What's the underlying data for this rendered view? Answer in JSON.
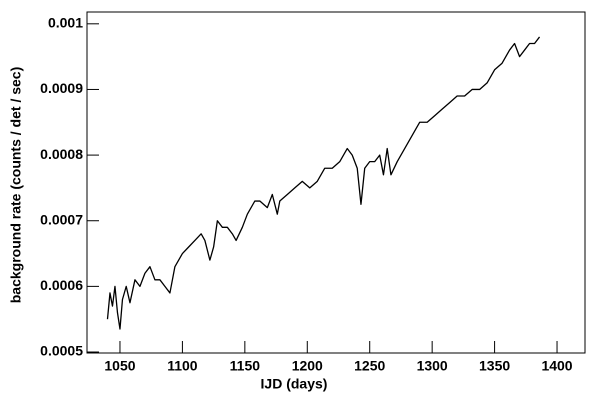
{
  "chart_data": {
    "type": "line",
    "x_label": "IJD (days)",
    "y_label": "background rate (counts / det / sec)",
    "color": "#000000",
    "x": [
      1040,
      1042,
      1044,
      1046,
      1048,
      1050,
      1052,
      1055,
      1058,
      1062,
      1066,
      1070,
      1074,
      1078,
      1082,
      1086,
      1090,
      1094,
      1100,
      1105,
      1110,
      1115,
      1118,
      1122,
      1125,
      1128,
      1132,
      1136,
      1140,
      1143,
      1148,
      1152,
      1158,
      1162,
      1168,
      1172,
      1176,
      1178,
      1184,
      1190,
      1196,
      1202,
      1208,
      1214,
      1220,
      1226,
      1232,
      1236,
      1240,
      1243,
      1246,
      1250,
      1254,
      1258,
      1261,
      1264,
      1267,
      1272,
      1278,
      1284,
      1290,
      1296,
      1302,
      1308,
      1314,
      1320,
      1326,
      1332,
      1338,
      1344,
      1350,
      1356,
      1362,
      1366,
      1370,
      1374,
      1378,
      1382,
      1386
    ],
    "values": [
      0.00055,
      0.00059,
      0.00057,
      0.0006,
      0.00056,
      0.000535,
      0.00058,
      0.0006,
      0.000575,
      0.00061,
      0.0006,
      0.00062,
      0.00063,
      0.00061,
      0.00061,
      0.0006,
      0.00059,
      0.00063,
      0.00065,
      0.00066,
      0.00067,
      0.00068,
      0.00067,
      0.00064,
      0.00066,
      0.0007,
      0.00069,
      0.00069,
      0.00068,
      0.00067,
      0.00069,
      0.00071,
      0.00073,
      0.00073,
      0.00072,
      0.00074,
      0.00071,
      0.00073,
      0.00074,
      0.00075,
      0.00076,
      0.00075,
      0.00076,
      0.00078,
      0.00078,
      0.00079,
      0.00081,
      0.0008,
      0.00078,
      0.000725,
      0.00078,
      0.00079,
      0.00079,
      0.0008,
      0.00077,
      0.00081,
      0.00077,
      0.00079,
      0.00081,
      0.00083,
      0.00085,
      0.00085,
      0.00086,
      0.00087,
      0.00088,
      0.00089,
      0.00089,
      0.0009,
      0.0009,
      0.00091,
      0.00093,
      0.00094,
      0.00096,
      0.00097,
      0.00095,
      0.00096,
      0.00097,
      0.00097,
      0.00098
    ],
    "xlim": [
      1023.6,
      1422.4
    ],
    "xticks": [
      1050,
      1100,
      1150,
      1200,
      1250,
      1300,
      1350,
      1400
    ],
    "ylim": [
      0.0004985,
      0.001018
    ],
    "yticks": [
      0.0005,
      0.0006,
      0.0007,
      0.0008,
      0.0009,
      0.001
    ]
  }
}
